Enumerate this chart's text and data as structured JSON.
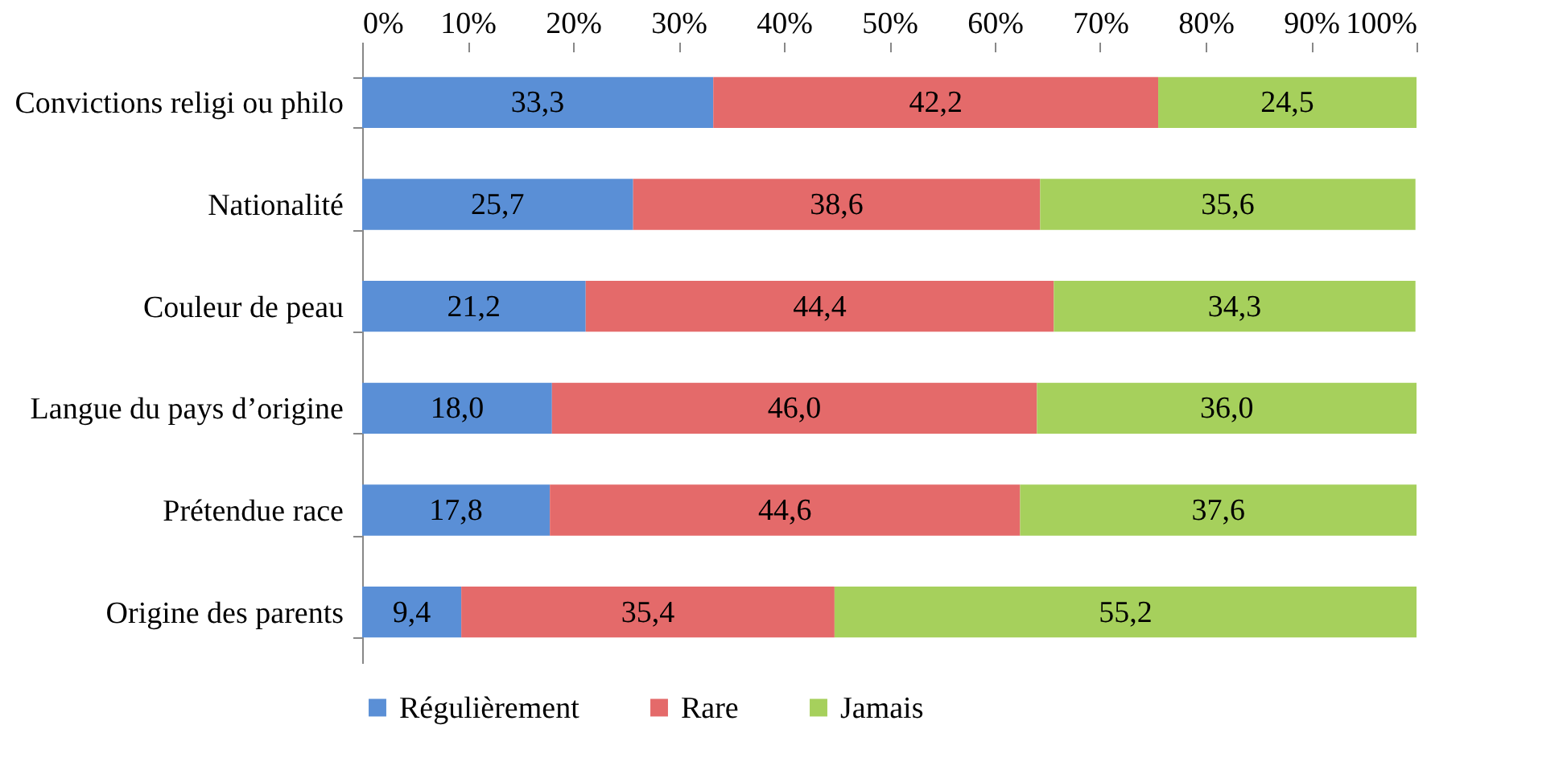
{
  "chart_data": {
    "type": "bar",
    "orientation": "horizontal",
    "stacked": true,
    "categories": [
      "Convictions religi ou philo",
      "Nationalité",
      "Couleur de peau",
      "Langue du pays d’origine",
      "Prétendue race",
      "Origine des parents"
    ],
    "series": [
      {
        "name": "Régulièrement",
        "color": "#5a8fd6",
        "values": [
          33.3,
          25.7,
          21.2,
          18.0,
          17.8,
          9.4
        ],
        "value_labels": [
          "33,3",
          "25,7",
          "21,2",
          "18,0",
          "17,8",
          "9,4"
        ]
      },
      {
        "name": "Rare",
        "color": "#e46a6a",
        "values": [
          42.2,
          38.6,
          44.4,
          46.0,
          44.6,
          35.4
        ],
        "value_labels": [
          "42,2",
          "38,6",
          "44,4",
          "46,0",
          "44,6",
          "35,4"
        ]
      },
      {
        "name": "Jamais",
        "color": "#a6d05c",
        "values": [
          24.5,
          35.6,
          34.3,
          36.0,
          37.6,
          55.2
        ],
        "value_labels": [
          "24,5",
          "35,6",
          "34,3",
          "36,0",
          "37,6",
          "55,2"
        ]
      }
    ],
    "xlim": [
      0,
      100
    ],
    "xticks": [
      {
        "value": 0,
        "label": "0%"
      },
      {
        "value": 10,
        "label": "10%"
      },
      {
        "value": 20,
        "label": "20%"
      },
      {
        "value": 30,
        "label": "30%"
      },
      {
        "value": 40,
        "label": "40%"
      },
      {
        "value": 50,
        "label": "50%"
      },
      {
        "value": 60,
        "label": "60%"
      },
      {
        "value": 70,
        "label": "70%"
      },
      {
        "value": 80,
        "label": "80%"
      },
      {
        "value": 90,
        "label": "90%"
      },
      {
        "value": 100,
        "label": "100%"
      }
    ],
    "grid": false,
    "legend": "bottom"
  }
}
